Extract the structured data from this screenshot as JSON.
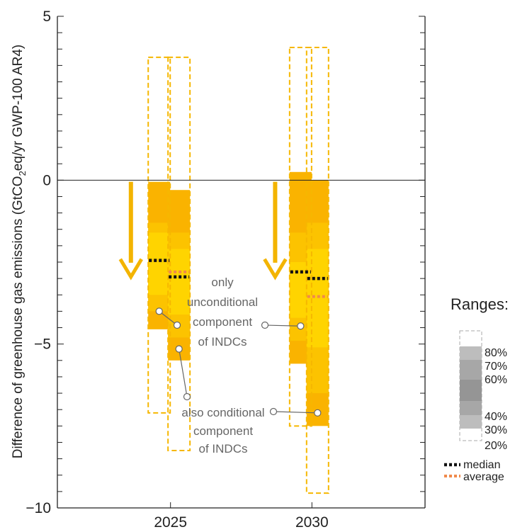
{
  "chart_data": {
    "type": "bar",
    "ylabel_parts": [
      "Difference of  greenhouse gas emissions (GtCO",
      "2",
      "eq/yr GWP-100 AR4)"
    ],
    "ylim": [
      -10,
      5
    ],
    "xlim": [
      2021,
      2034
    ],
    "yticks": [
      5,
      0,
      -5,
      -10
    ],
    "ytick_labels": [
      "5",
      "0",
      "−5",
      "−10"
    ],
    "xticks": [
      2025,
      2030
    ],
    "xtick_labels": [
      "2025",
      "2030"
    ],
    "series": [
      {
        "label": "only unconditional component of INDCs",
        "year": 2025,
        "x": 24.6,
        "outer": [
          -7.1,
          3.75
        ],
        "p20": -4.55,
        "p30": -4.0,
        "p40": -3.5,
        "p60": -1.6,
        "p70": -1.3,
        "p80": -0.05,
        "median": -2.45,
        "average": -2.45
      },
      {
        "label": "also conditional component of INDCs",
        "year": 2025,
        "x": 25.3,
        "outer": [
          -8.25,
          3.75
        ],
        "p20": -5.5,
        "p30": -4.8,
        "p40": -4.1,
        "p60": -2.1,
        "p70": -1.6,
        "p80": -0.3,
        "median": -2.95,
        "average": -2.8
      },
      {
        "label": "only unconditional component of INDCs",
        "year": 2030,
        "x": 29.6,
        "outer": [
          -7.5,
          4.05
        ],
        "p20": -5.6,
        "p30": -4.9,
        "p40": -4.2,
        "p60": -2.5,
        "p70": -1.6,
        "p80": 0.25,
        "median": -2.8,
        "average": -2.8
      },
      {
        "label": "also conditional component of INDCs",
        "year": 2030,
        "x": 30.2,
        "outer": [
          -9.55,
          4.05
        ],
        "p20": -7.5,
        "p30": -6.5,
        "p40": -5.1,
        "p60": -2.1,
        "p70": -1.3,
        "p80": 0.0,
        "median": -3.0,
        "average": -3.55
      }
    ],
    "arrows": [
      {
        "x": 23.6,
        "from": -0.05,
        "to": -2.95
      },
      {
        "x": 28.7,
        "from": -0.05,
        "to": -2.95
      }
    ],
    "annotations": {
      "unconditional_lines": [
        "only",
        "unconditional",
        "component",
        "of INDCs"
      ],
      "conditional_lines": [
        "also conditional",
        "component",
        "of INDCs"
      ]
    },
    "legend": {
      "title": "Ranges:",
      "percentiles": [
        "80%",
        "70%",
        "60%",
        "40%",
        "30%",
        "20%"
      ],
      "median_label": "median",
      "average_label": "average"
    },
    "colors": {
      "p20_80": "#FAB300",
      "p30_70": "#FCC300",
      "p40_60": "#FFD400",
      "dashed_outline": "#F6B700",
      "arrow": "#F3B400",
      "median": "#111111",
      "average": "#F08A4B",
      "annotation_grey": "#666666"
    }
  }
}
